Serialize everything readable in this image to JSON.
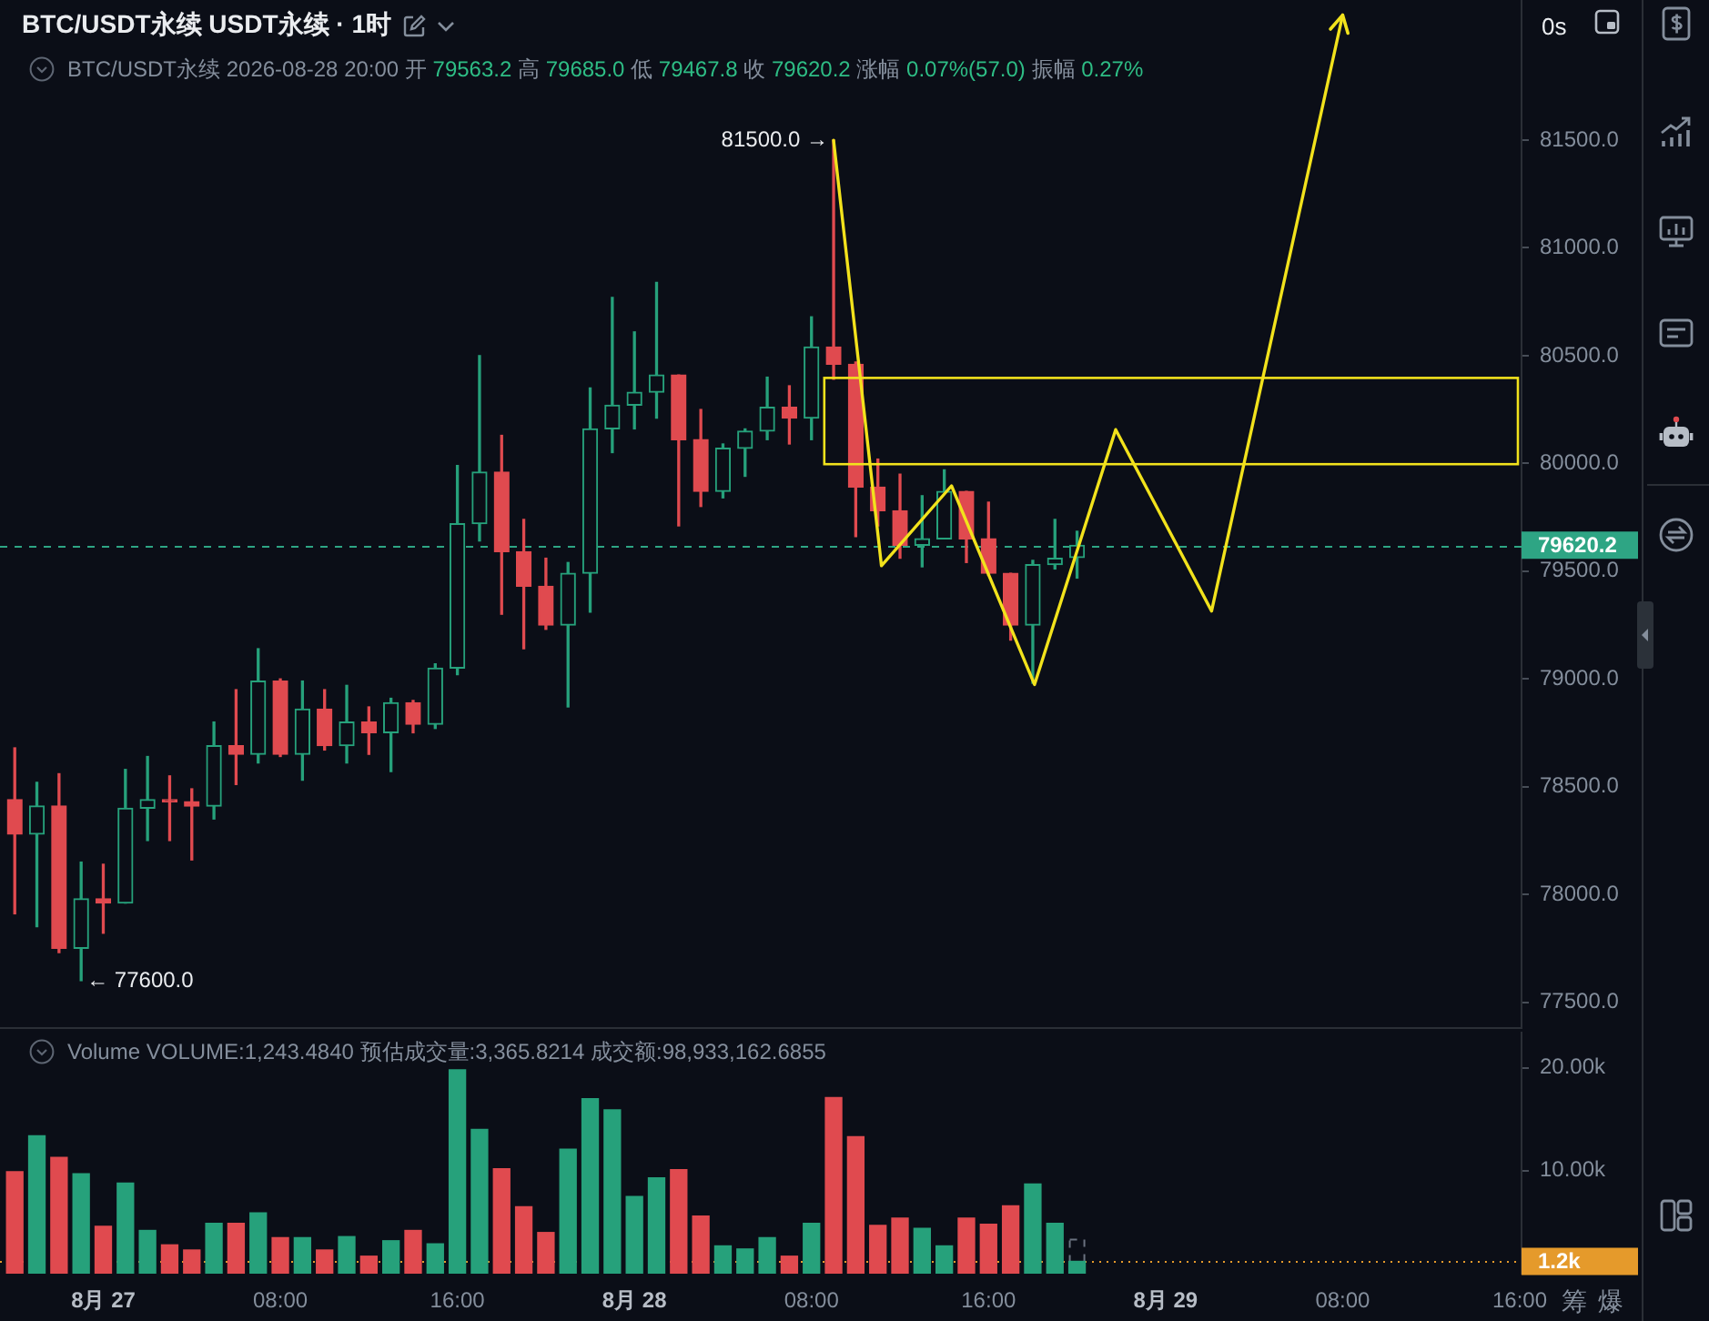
{
  "chart_data": [
    {
      "type": "candlestick",
      "title": "BTC/USDT永续 USDT永续 · 1时",
      "subtitle": "BTC/USDT永续 2026-08-28 20:00 开 79563.2 高 79685.0 低 79467.8 收 79620.2 涨幅 0.07%(57.0) 振幅 0.27%",
      "x": [
        "2026-08-26T20:00",
        "2026-08-26T21:00",
        "2026-08-26T22:00",
        "2026-08-26T23:00",
        "2026-08-27T00:00",
        "2026-08-27T01:00",
        "2026-08-27T02:00",
        "2026-08-27T03:00",
        "2026-08-27T04:00",
        "2026-08-27T05:00",
        "2026-08-27T06:00",
        "2026-08-27T07:00",
        "2026-08-27T08:00",
        "2026-08-27T09:00",
        "2026-08-27T10:00",
        "2026-08-27T11:00",
        "2026-08-27T12:00",
        "2026-08-27T13:00",
        "2026-08-27T14:00",
        "2026-08-27T15:00",
        "2026-08-27T16:00",
        "2026-08-27T17:00",
        "2026-08-27T18:00",
        "2026-08-27T19:00",
        "2026-08-27T20:00",
        "2026-08-27T21:00",
        "2026-08-27T22:00",
        "2026-08-27T23:00",
        "2026-08-28T00:00",
        "2026-08-28T01:00",
        "2026-08-28T02:00",
        "2026-08-28T03:00",
        "2026-08-28T04:00",
        "2026-08-28T05:00",
        "2026-08-28T06:00",
        "2026-08-28T07:00",
        "2026-08-28T08:00",
        "2026-08-28T09:00",
        "2026-08-28T10:00",
        "2026-08-28T11:00",
        "2026-08-28T12:00",
        "2026-08-28T13:00",
        "2026-08-28T14:00",
        "2026-08-28T15:00",
        "2026-08-28T16:00",
        "2026-08-28T17:00",
        "2026-08-28T18:00",
        "2026-08-28T19:00",
        "2026-08-28T20:00"
      ],
      "ohlc": [
        [
          78440,
          78680,
          77910,
          78280
        ],
        [
          78280,
          78520,
          77850,
          78410
        ],
        [
          78410,
          78560,
          77730,
          77750
        ],
        [
          77750,
          78150,
          77600,
          77980
        ],
        [
          77980,
          78140,
          77820,
          77960
        ],
        [
          77960,
          78580,
          77960,
          78400
        ],
        [
          78400,
          78640,
          78250,
          78440
        ],
        [
          78440,
          78550,
          78250,
          78430
        ],
        [
          78430,
          78490,
          78160,
          78410
        ],
        [
          78410,
          78800,
          78350,
          78690
        ],
        [
          78690,
          78950,
          78510,
          78650
        ],
        [
          78650,
          79140,
          78610,
          78990
        ],
        [
          78990,
          79000,
          78640,
          78650
        ],
        [
          78650,
          78990,
          78530,
          78860
        ],
        [
          78860,
          78950,
          78670,
          78690
        ],
        [
          78690,
          78970,
          78610,
          78800
        ],
        [
          78800,
          78870,
          78650,
          78750
        ],
        [
          78750,
          78910,
          78570,
          78890
        ],
        [
          78890,
          78900,
          78750,
          78790
        ],
        [
          78790,
          79070,
          78770,
          79050
        ],
        [
          79050,
          79990,
          79020,
          79720
        ],
        [
          79720,
          80500,
          79640,
          79960
        ],
        [
          79960,
          80130,
          79300,
          79590
        ],
        [
          79590,
          79740,
          79140,
          79430
        ],
        [
          79430,
          79560,
          79230,
          79250
        ],
        [
          79250,
          79540,
          78870,
          79490
        ],
        [
          79490,
          80350,
          79310,
          80160
        ],
        [
          80160,
          80770,
          80050,
          80270
        ],
        [
          80270,
          80610,
          80160,
          80330
        ],
        [
          80330,
          80840,
          80210,
          80410
        ],
        [
          80410,
          80410,
          79710,
          80110
        ],
        [
          80110,
          80250,
          79800,
          79870
        ],
        [
          79870,
          80090,
          79840,
          80070
        ],
        [
          80070,
          80160,
          79940,
          80150
        ],
        [
          80150,
          80400,
          80110,
          80260
        ],
        [
          80260,
          80360,
          80090,
          80210
        ],
        [
          80210,
          80680,
          80110,
          80540
        ],
        [
          80540,
          81500,
          80390,
          80460
        ],
        [
          80460,
          80470,
          79660,
          79890
        ],
        [
          79890,
          80020,
          79710,
          79780
        ],
        [
          79780,
          79950,
          79560,
          79620
        ],
        [
          79620,
          79850,
          79520,
          79650
        ],
        [
          79650,
          79970,
          79650,
          79870
        ],
        [
          79870,
          79870,
          79540,
          79650
        ],
        [
          79650,
          79820,
          79480,
          79490
        ],
        [
          79490,
          79490,
          79180,
          79250
        ],
        [
          79250,
          79550,
          78980,
          79530
        ],
        [
          79530,
          79740,
          79510,
          79560
        ],
        [
          79563.2,
          79685.0,
          79467.8,
          79620.2
        ]
      ],
      "colors": [
        "#e04a4f",
        "#26a17b",
        "#e04a4f",
        "#26a17b",
        "#e04a4f",
        "#26a17b",
        "#26a17b",
        "#e04a4f",
        "#e04a4f",
        "#26a17b",
        "#e04a4f",
        "#26a17b",
        "#e04a4f",
        "#26a17b",
        "#e04a4f",
        "#26a17b",
        "#e04a4f",
        "#26a17b",
        "#e04a4f",
        "#26a17b",
        "#26a17b",
        "#26a17b",
        "#e04a4f",
        "#e04a4f",
        "#e04a4f",
        "#26a17b",
        "#26a17b",
        "#26a17b",
        "#26a17b",
        "#26a17b",
        "#e04a4f",
        "#e04a4f",
        "#26a17b",
        "#26a17b",
        "#26a17b",
        "#e04a4f",
        "#26a17b",
        "#e04a4f",
        "#e04a4f",
        "#e04a4f",
        "#e04a4f",
        "#26a17b",
        "#26a17b",
        "#e04a4f",
        "#e04a4f",
        "#e04a4f",
        "#26a17b",
        "#26a17b",
        "#26a17b"
      ],
      "xlim": [
        "2026-08-26T19:20",
        "2026-08-29T16:05"
      ],
      "ylim": [
        77380,
        82150
      ],
      "yticks": [
        {
          "value": 77500,
          "label": "77500.0"
        },
        {
          "value": 78000,
          "label": "78000.0"
        },
        {
          "value": 78500,
          "label": "78500.0"
        },
        {
          "value": 79000,
          "label": "79000.0"
        },
        {
          "value": 79500,
          "label": "79500.0"
        },
        {
          "value": 80000,
          "label": "80000.0"
        },
        {
          "value": 80500,
          "label": "80500.0"
        },
        {
          "value": 81000,
          "label": "81000.0"
        },
        {
          "value": 81500,
          "label": "81500.0"
        }
      ],
      "tick_labels": "y",
      "ref_lines": [
        {
          "axis": "y",
          "value": 79620.2,
          "label": "79620.2",
          "color": "#2ea584",
          "line_style": "dashed"
        }
      ],
      "annotations": [
        {
          "text": "81500.0 →",
          "x": "2026-08-28T09:00",
          "y": 81500
        },
        {
          "text": "← 77600.0",
          "x": "2026-08-26T23:00",
          "y": 77600
        },
        "0s"
      ]
    },
    {
      "type": "bar",
      "title": "Volume VOLUME:1,243.4840 预估成交量:3,365.8214 成交额:98,933,162.6855",
      "x": [
        "2026-08-26T20:00",
        "2026-08-26T21:00",
        "2026-08-26T22:00",
        "2026-08-26T23:00",
        "2026-08-27T00:00",
        "2026-08-27T01:00",
        "2026-08-27T02:00",
        "2026-08-27T03:00",
        "2026-08-27T04:00",
        "2026-08-27T05:00",
        "2026-08-27T06:00",
        "2026-08-27T07:00",
        "2026-08-27T08:00",
        "2026-08-27T09:00",
        "2026-08-27T10:00",
        "2026-08-27T11:00",
        "2026-08-27T12:00",
        "2026-08-27T13:00",
        "2026-08-27T14:00",
        "2026-08-27T15:00",
        "2026-08-27T16:00",
        "2026-08-27T17:00",
        "2026-08-27T18:00",
        "2026-08-27T19:00",
        "2026-08-27T20:00",
        "2026-08-27T21:00",
        "2026-08-27T22:00",
        "2026-08-27T23:00",
        "2026-08-28T00:00",
        "2026-08-28T01:00",
        "2026-08-28T02:00",
        "2026-08-28T03:00",
        "2026-08-28T04:00",
        "2026-08-28T05:00",
        "2026-08-28T06:00",
        "2026-08-28T07:00",
        "2026-08-28T08:00",
        "2026-08-28T09:00",
        "2026-08-28T10:00",
        "2026-08-28T11:00",
        "2026-08-28T12:00",
        "2026-08-28T13:00",
        "2026-08-28T14:00",
        "2026-08-28T15:00",
        "2026-08-28T16:00",
        "2026-08-28T17:00",
        "2026-08-28T18:00",
        "2026-08-28T19:00",
        "2026-08-28T20:00"
      ],
      "series": [
        {
          "values": [
            9900,
            13400,
            11300,
            9700,
            4600,
            8800,
            4200,
            2800,
            2300,
            4900,
            4900,
            5900,
            3500,
            3500,
            2300,
            3600,
            1700,
            3200,
            4200,
            2900,
            19800,
            14000,
            10200,
            6500,
            4000,
            12100,
            17000,
            15900,
            7500,
            9300,
            10100,
            5600,
            2700,
            2400,
            3500,
            1700,
            4900,
            17100,
            13300,
            4700,
            5400,
            4400,
            2700,
            5400,
            4800,
            6600,
            8700,
            4900,
            1200
          ],
          "colors": [
            "#e04a4f",
            "#26a17b",
            "#e04a4f",
            "#26a17b",
            "#e04a4f",
            "#26a17b",
            "#26a17b",
            "#e04a4f",
            "#e04a4f",
            "#26a17b",
            "#e04a4f",
            "#26a17b",
            "#e04a4f",
            "#26a17b",
            "#e04a4f",
            "#26a17b",
            "#e04a4f",
            "#26a17b",
            "#e04a4f",
            "#26a17b",
            "#26a17b",
            "#26a17b",
            "#e04a4f",
            "#e04a4f",
            "#e04a4f",
            "#26a17b",
            "#26a17b",
            "#26a17b",
            "#26a17b",
            "#26a17b",
            "#e04a4f",
            "#e04a4f",
            "#26a17b",
            "#26a17b",
            "#26a17b",
            "#e04a4f",
            "#26a17b",
            "#e04a4f",
            "#e04a4f",
            "#e04a4f",
            "#e04a4f",
            "#26a17b",
            "#26a17b",
            "#e04a4f",
            "#e04a4f",
            "#e04a4f",
            "#26a17b",
            "#26a17b",
            "#26a17b"
          ]
        },
        {
          "values": [
            null,
            null,
            null,
            null,
            null,
            null,
            null,
            null,
            null,
            null,
            null,
            null,
            null,
            null,
            null,
            null,
            null,
            null,
            null,
            null,
            null,
            null,
            null,
            null,
            null,
            null,
            null,
            null,
            null,
            null,
            null,
            null,
            null,
            null,
            null,
            null,
            null,
            null,
            null,
            null,
            null,
            null,
            null,
            null,
            null,
            null,
            null,
            null,
            3400
          ],
          "color": "#6b7280",
          "line_style": "dashed"
        }
      ],
      "xlim": [
        "2026-08-26T19:20",
        "2026-08-29T16:05"
      ],
      "xticks": [
        {
          "value": "2026-08-27T00:00",
          "label": "8月 27"
        },
        {
          "value": "2026-08-27T08:00",
          "label": "08:00"
        },
        {
          "value": "2026-08-27T16:00",
          "label": "16:00"
        },
        {
          "value": "2026-08-28T00:00",
          "label": "8月 28"
        },
        {
          "value": "2026-08-28T08:00",
          "label": "08:00"
        },
        {
          "value": "2026-08-28T16:00",
          "label": "16:00"
        },
        {
          "value": "2026-08-29T00:00",
          "label": "8月 29"
        },
        {
          "value": "2026-08-29T08:00",
          "label": "08:00"
        },
        {
          "value": "2026-08-29T16:00",
          "label": "16:00"
        }
      ],
      "ylim": [
        0,
        23500
      ],
      "yticks": [
        {
          "value": 10000,
          "label": "10.00k"
        },
        {
          "value": 20000,
          "label": "20.00k"
        }
      ],
      "ref_lines": [
        {
          "axis": "y",
          "value": 1200,
          "label": "1.2k",
          "color": "#e59a2b",
          "line_style": "dotted"
        }
      ],
      "annotations": [
        "筹",
        "爆"
      ]
    }
  ]
}
